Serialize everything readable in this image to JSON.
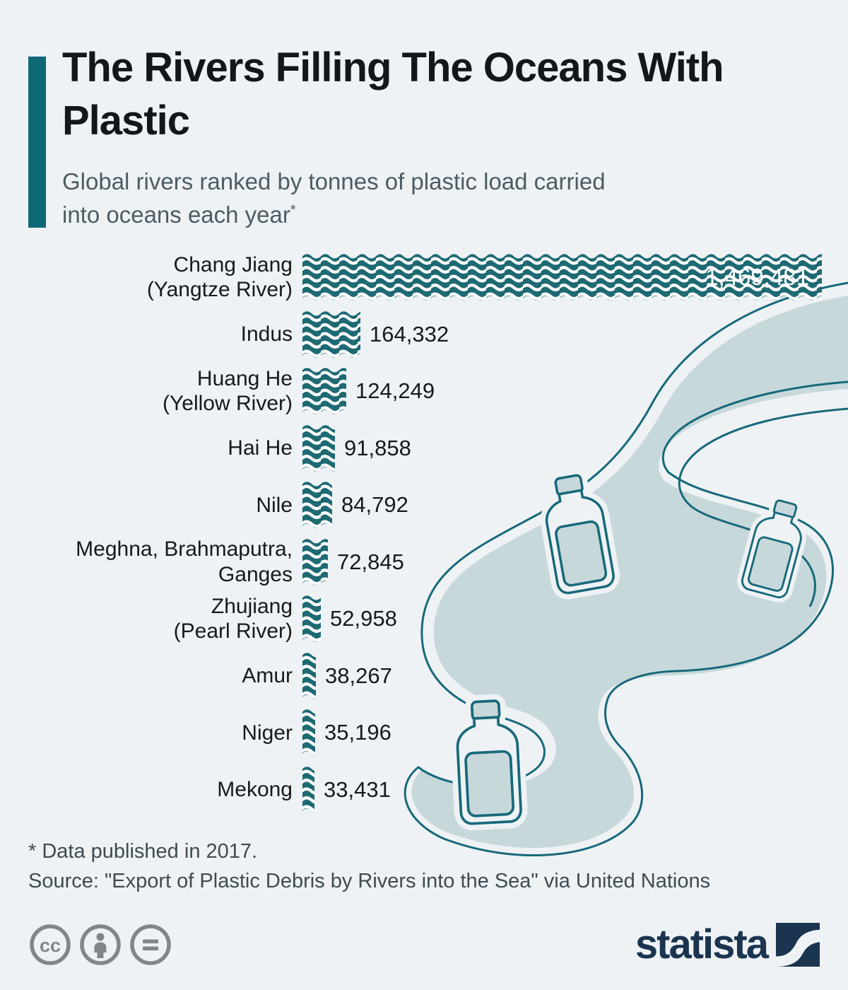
{
  "chart_data": {
    "type": "bar",
    "orientation": "horizontal",
    "title": "The Rivers Filling The Oceans With Plastic",
    "subtitle": "Global rivers ranked by tonnes of plastic load carried into oceans each year",
    "subtitle_marker": "*",
    "categories": [
      "Chang Jiang\n(Yangtze River)",
      "Indus",
      "Huang He\n(Yellow River)",
      "Hai He",
      "Nile",
      "Meghna, Brahmaputra,\nGanges",
      "Zhujiang\n(Pearl River)",
      "Amur",
      "Niger",
      "Mekong"
    ],
    "values": [
      1469481,
      164332,
      124249,
      91858,
      84792,
      72845,
      52958,
      38267,
      35196,
      33431
    ],
    "value_labels": [
      "1,469,481",
      "164,332",
      "124,249",
      "91,858",
      "84,792",
      "72,845",
      "52,958",
      "38,267",
      "35,196",
      "33,431"
    ],
    "xlim": [
      0,
      1469481
    ],
    "grid": false,
    "legend": false,
    "bar_pattern": "white-wave-lines-on-teal",
    "value_label_position": {
      "first_bar": "inside-end",
      "other_bars": "outside-end"
    }
  },
  "footer": {
    "footnote": "* Data published in 2017.",
    "source": "Source: \"Export of Plastic Debris by Rivers into the Sea\" via United Nations"
  },
  "branding": {
    "logo_text": "statista",
    "license_icons": [
      "creative-commons",
      "attribution-person",
      "no-derivatives-equals"
    ]
  },
  "colors": {
    "background": "#eef2f5",
    "bar_teal": "#1e6a73",
    "accent_bar": "#0e6873",
    "river_fill": "#c7d8db",
    "river_stroke": "#17697a",
    "subtitle_gray": "#4e5b63",
    "footer_gray": "#3f4a51",
    "license_gray": "#828689",
    "logo_navy": "#1b344f",
    "bar_value_inside": "#ffffff",
    "text_dark": "#17191b"
  }
}
